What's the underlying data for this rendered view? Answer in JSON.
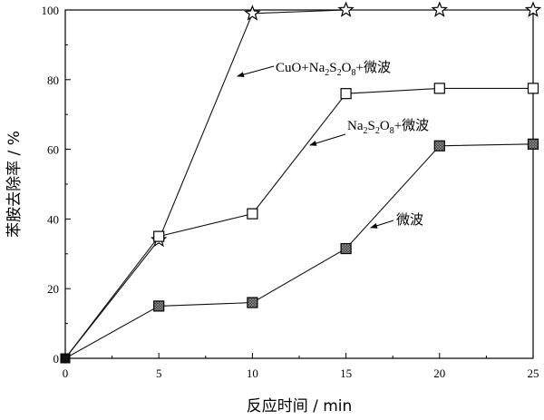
{
  "chart_data": {
    "type": "line",
    "xlabel": "反应时间 / min",
    "ylabel": "苯胺去除率 / %",
    "xlim": [
      0,
      25
    ],
    "ylim": [
      0,
      100
    ],
    "xticks": [
      0,
      5,
      10,
      15,
      20,
      25
    ],
    "yticks": [
      0,
      20,
      40,
      60,
      80,
      100
    ],
    "grid": false,
    "x": [
      0,
      5,
      10,
      15,
      20,
      25
    ],
    "series": [
      {
        "name": "CuO+Na2S2O8+微波",
        "marker": "star",
        "values": [
          0,
          34,
          99,
          100,
          100,
          100
        ]
      },
      {
        "name": "Na2S2O8+微波",
        "marker": "open-square",
        "values": [
          0,
          35,
          41.5,
          76,
          77.5,
          77.5
        ]
      },
      {
        "name": "微波",
        "marker": "filled-square",
        "values": [
          0,
          15,
          16,
          31.5,
          61,
          61.5
        ]
      }
    ]
  }
}
